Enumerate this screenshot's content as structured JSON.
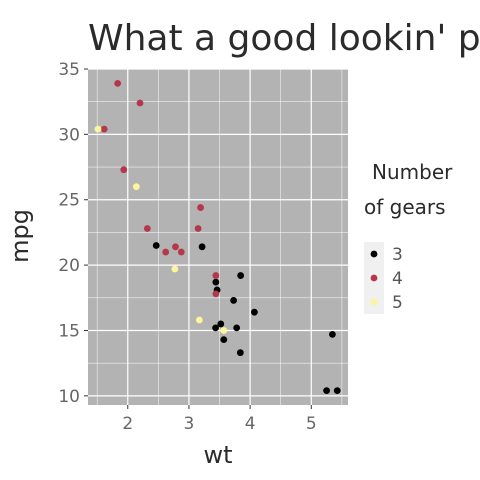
{
  "chart_data": {
    "type": "scatter",
    "title": "What a good lookin' plot",
    "xlabel": "wt",
    "ylabel": "mpg",
    "xlim": [
      1.35,
      5.6
    ],
    "ylim": [
      9.3,
      35.0
    ],
    "x_ticks": [
      2,
      3,
      4,
      5
    ],
    "x_tick_labels": [
      "2",
      "3",
      "4",
      "5"
    ],
    "y_ticks": [
      10,
      15,
      20,
      25,
      30,
      35
    ],
    "y_tick_labels": [
      "10",
      "15",
      "20",
      "25",
      "30",
      "35"
    ],
    "grid": true,
    "panel_background": "#b3b3b3",
    "grid_color": "#ffffff",
    "legend": {
      "title_lines": [
        "Number",
        "of gears"
      ],
      "placement": "right",
      "background": "#f0f0f0"
    },
    "series": [
      {
        "name": "3",
        "color": "#000000",
        "points": [
          [
            3.215,
            21.4
          ],
          [
            3.44,
            18.7
          ],
          [
            3.46,
            18.1
          ],
          [
            3.57,
            14.3
          ],
          [
            4.07,
            16.4
          ],
          [
            3.73,
            17.3
          ],
          [
            3.78,
            15.2
          ],
          [
            5.25,
            10.4
          ],
          [
            5.424,
            10.4
          ],
          [
            5.345,
            14.7
          ],
          [
            2.465,
            21.5
          ],
          [
            3.52,
            15.5
          ],
          [
            3.435,
            15.2
          ],
          [
            3.84,
            13.3
          ],
          [
            3.845,
            19.2
          ]
        ]
      },
      {
        "name": "4",
        "color": "#b5374c",
        "points": [
          [
            2.62,
            21.0
          ],
          [
            2.875,
            21.0
          ],
          [
            2.32,
            22.8
          ],
          [
            3.19,
            24.4
          ],
          [
            3.15,
            22.8
          ],
          [
            3.44,
            19.2
          ],
          [
            3.44,
            17.8
          ],
          [
            2.2,
            32.4
          ],
          [
            1.615,
            30.4
          ],
          [
            1.835,
            33.9
          ],
          [
            1.935,
            27.3
          ],
          [
            2.78,
            21.4
          ]
        ]
      },
      {
        "name": "5",
        "color": "#fbf59b",
        "points": [
          [
            2.14,
            26.0
          ],
          [
            1.513,
            30.4
          ],
          [
            3.17,
            15.8
          ],
          [
            2.77,
            19.7
          ],
          [
            3.57,
            15.0
          ]
        ]
      }
    ]
  }
}
